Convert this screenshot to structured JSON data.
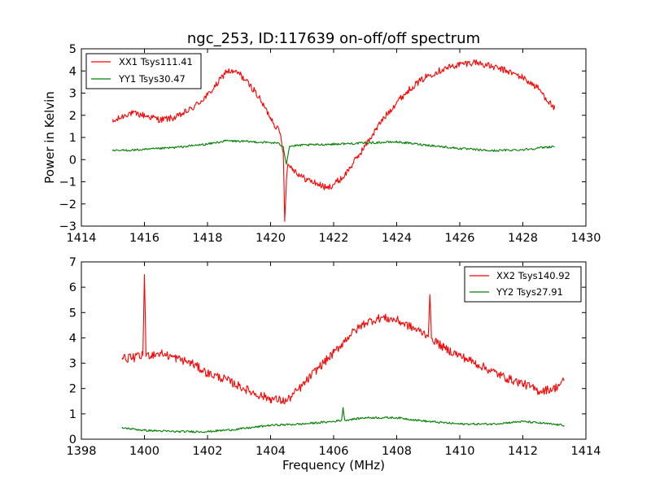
{
  "chart_data": [
    {
      "type": "line",
      "title": "ngc_253, ID:117639 on-off/off spectrum",
      "xlabel": "",
      "ylabel": "Power in Kelvin",
      "xlim": [
        1414,
        1430
      ],
      "ylim": [
        -3,
        5
      ],
      "xticks": [
        1414,
        1416,
        1418,
        1420,
        1422,
        1424,
        1426,
        1428,
        1430
      ],
      "yticks": [
        -3,
        -2,
        -1,
        0,
        1,
        2,
        3,
        4,
        5
      ],
      "grid": false,
      "legend_loc": "upper left",
      "series": [
        {
          "name": "XX1 Tsys111.41",
          "color": "#ff0000",
          "noise": 0.15,
          "x": [
            1415.0,
            1415.5,
            1416.0,
            1416.5,
            1417.0,
            1417.5,
            1418.0,
            1418.3,
            1418.6,
            1419.0,
            1419.5,
            1420.0,
            1420.3,
            1420.4,
            1420.45,
            1420.5,
            1420.55,
            1420.7,
            1421.0,
            1421.5,
            1421.8,
            1422.3,
            1422.8,
            1423.5,
            1424.0,
            1424.5,
            1425.0,
            1425.5,
            1426.0,
            1426.5,
            1427.0,
            1427.5,
            1428.0,
            1428.5,
            1429.0
          ],
          "y": [
            1.7,
            2.1,
            2.0,
            1.8,
            1.9,
            2.3,
            2.9,
            3.4,
            4.0,
            3.9,
            3.1,
            1.9,
            1.2,
            0.4,
            -2.7,
            -1.0,
            -0.2,
            -0.4,
            -0.8,
            -1.1,
            -1.3,
            -0.8,
            0.2,
            1.7,
            2.6,
            3.3,
            3.8,
            4.1,
            4.3,
            4.4,
            4.2,
            4.0,
            3.7,
            3.2,
            2.3
          ]
        },
        {
          "name": "YY1 Tsys30.47",
          "color": "#008000",
          "noise": 0.05,
          "x": [
            1415.0,
            1416.0,
            1417.0,
            1418.0,
            1418.6,
            1419.5,
            1420.2,
            1420.4,
            1420.5,
            1420.6,
            1421.0,
            1422.0,
            1423.0,
            1424.0,
            1425.0,
            1426.0,
            1427.0,
            1428.0,
            1429.0
          ],
          "y": [
            0.4,
            0.45,
            0.55,
            0.7,
            0.85,
            0.8,
            0.75,
            0.6,
            -0.2,
            0.6,
            0.65,
            0.7,
            0.75,
            0.8,
            0.65,
            0.5,
            0.4,
            0.45,
            0.6
          ]
        }
      ]
    },
    {
      "type": "line",
      "title": "",
      "xlabel": "Frequency (MHz)",
      "ylabel": "",
      "xlim": [
        1398,
        1414
      ],
      "ylim": [
        0,
        7
      ],
      "xticks": [
        1398,
        1400,
        1402,
        1404,
        1406,
        1408,
        1410,
        1412,
        1414
      ],
      "yticks": [
        0,
        1,
        2,
        3,
        4,
        5,
        6,
        7
      ],
      "grid": false,
      "legend_loc": "upper right",
      "series": [
        {
          "name": "XX2 Tsys140.92",
          "color": "#ff0000",
          "noise": 0.17,
          "x": [
            1399.3,
            1399.6,
            1399.95,
            1400.0,
            1400.05,
            1400.5,
            1401.0,
            1401.5,
            1402.0,
            1402.5,
            1403.0,
            1403.5,
            1404.0,
            1404.5,
            1405.0,
            1405.5,
            1406.0,
            1406.5,
            1407.0,
            1407.5,
            1408.0,
            1408.5,
            1409.0,
            1409.05,
            1409.1,
            1409.5,
            1410.0,
            1410.5,
            1411.0,
            1411.5,
            1412.0,
            1412.5,
            1413.0,
            1413.3
          ],
          "y": [
            3.2,
            3.2,
            3.3,
            6.5,
            3.3,
            3.4,
            3.2,
            3.0,
            2.6,
            2.4,
            2.1,
            1.8,
            1.6,
            1.5,
            2.1,
            2.8,
            3.4,
            4.1,
            4.6,
            4.8,
            4.7,
            4.4,
            4.1,
            5.7,
            4.0,
            3.6,
            3.3,
            3.0,
            2.7,
            2.4,
            2.2,
            1.9,
            2.0,
            2.3
          ]
        },
        {
          "name": "YY2 Tsys27.91",
          "color": "#008000",
          "noise": 0.04,
          "x": [
            1399.3,
            1400.0,
            1401.0,
            1402.0,
            1403.0,
            1404.0,
            1405.0,
            1406.0,
            1406.25,
            1406.3,
            1406.35,
            1407.0,
            1408.0,
            1409.0,
            1410.0,
            1411.0,
            1412.0,
            1413.3
          ],
          "y": [
            0.45,
            0.35,
            0.3,
            0.3,
            0.4,
            0.55,
            0.6,
            0.7,
            0.75,
            1.25,
            0.75,
            0.85,
            0.85,
            0.7,
            0.6,
            0.6,
            0.7,
            0.55
          ]
        }
      ]
    }
  ]
}
